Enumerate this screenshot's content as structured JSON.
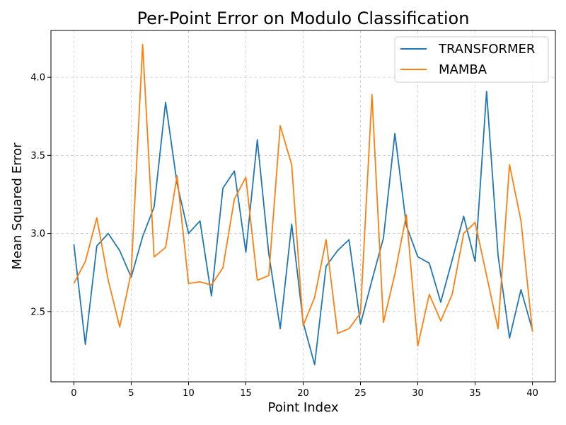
{
  "chart_data": {
    "type": "line",
    "title": "Per-Point Error on Modulo Classification",
    "xlabel": "Point Index",
    "ylabel": "Mean Squared Error",
    "xlim": [
      -2,
      42
    ],
    "ylim": [
      2.05,
      4.3
    ],
    "xticks": [
      0,
      5,
      10,
      15,
      20,
      25,
      30,
      35,
      40
    ],
    "yticks": [
      2.5,
      3.0,
      3.5,
      4.0
    ],
    "xtick_labels": [
      "0",
      "5",
      "10",
      "15",
      "20",
      "25",
      "30",
      "35",
      "40"
    ],
    "ytick_labels": [
      "2.5",
      "3.0",
      "3.5",
      "4.0"
    ],
    "grid": true,
    "legend_position": "top-right",
    "x": [
      0,
      1,
      2,
      3,
      4,
      5,
      6,
      7,
      8,
      9,
      10,
      11,
      12,
      13,
      14,
      15,
      16,
      17,
      18,
      19,
      20,
      21,
      22,
      23,
      24,
      25,
      26,
      27,
      28,
      29,
      30,
      31,
      32,
      33,
      34,
      35,
      36,
      37,
      38,
      39,
      40
    ],
    "series": [
      {
        "name": "TRANSFORMER",
        "color": "#1f77b4",
        "values": [
          2.93,
          2.29,
          2.92,
          3.0,
          2.89,
          2.72,
          2.98,
          3.17,
          3.84,
          3.32,
          3.0,
          3.08,
          2.6,
          3.29,
          3.4,
          2.88,
          3.6,
          2.87,
          2.39,
          3.06,
          2.43,
          2.16,
          2.79,
          2.89,
          2.96,
          2.42,
          2.7,
          2.97,
          3.64,
          3.05,
          2.85,
          2.81,
          2.56,
          2.83,
          3.11,
          2.82,
          3.91,
          2.86,
          2.33,
          2.64,
          2.38
        ]
      },
      {
        "name": "MAMBA",
        "color": "#ff7f0e",
        "values": [
          2.68,
          2.82,
          3.1,
          2.7,
          2.4,
          2.75,
          4.21,
          2.85,
          2.91,
          3.37,
          2.68,
          2.69,
          2.67,
          2.78,
          3.22,
          3.36,
          2.7,
          2.73,
          3.69,
          3.44,
          2.41,
          2.59,
          2.96,
          2.36,
          2.39,
          2.49,
          3.89,
          2.43,
          2.74,
          3.12,
          2.28,
          2.61,
          2.44,
          2.61,
          3.0,
          3.07,
          2.73,
          2.39,
          3.44,
          3.08,
          2.37
        ]
      }
    ]
  }
}
